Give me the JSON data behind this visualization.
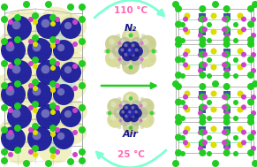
{
  "fig_width": 2.91,
  "fig_height": 1.89,
  "dpi": 100,
  "bg_color": "#ffffff",
  "top_temp": "110 °C",
  "top_temp_color": "#ff69b4",
  "bottom_temp": "25 °C",
  "bottom_temp_color": "#ff69b4",
  "n2_label": "N₂",
  "n2_color": "#1a1a8c",
  "air_label": "Air",
  "air_color": "#1a1a8c",
  "arrow_color": "#7fffd4",
  "green_color": "#22cc22",
  "yellow_color": "#dddd00",
  "purple_color": "#cc44cc",
  "blue_color": "#1a1a9c",
  "gray_color": "#aaaaaa"
}
